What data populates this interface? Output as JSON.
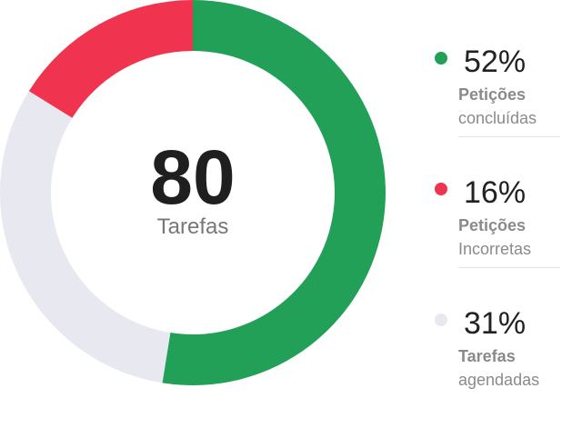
{
  "chart_data": {
    "type": "pie",
    "total": "80",
    "total_label": "Tarefas",
    "slices": [
      {
        "percent_label": "52%",
        "value": 52,
        "label_bold": "Petições",
        "label_sub": "concluídas",
        "color": "#22a058"
      },
      {
        "percent_label": "16%",
        "value": 16,
        "label_bold": "Petições",
        "label_sub": "Incorretas",
        "color": "#f0344f"
      },
      {
        "percent_label": "31%",
        "value": 31,
        "label_bold": "Tarefas",
        "label_sub": "agendadas",
        "color": "#e8e9f0"
      }
    ],
    "donut_order": [
      0,
      2,
      1
    ]
  }
}
